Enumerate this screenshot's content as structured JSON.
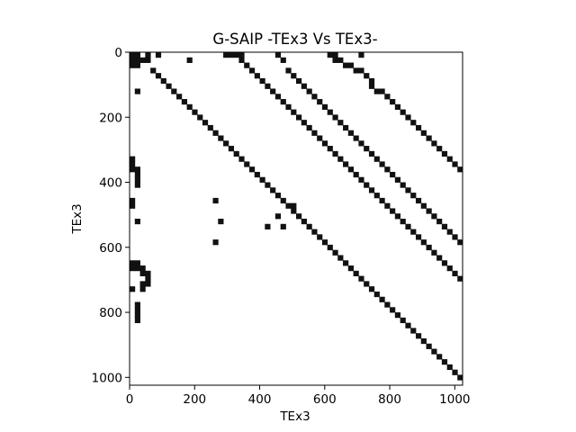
{
  "chart_data": {
    "type": "heatmap",
    "title": "G-SAIP -TEx3 Vs TEx3-",
    "xlabel": "TEx3",
    "ylabel": "TEx3",
    "matrix_size": 1024,
    "cell_size": 16,
    "xlim": [
      0,
      1024
    ],
    "ylim": [
      1024,
      0
    ],
    "y_inverted": true,
    "xticks": [
      0,
      200,
      400,
      600,
      800,
      1000
    ],
    "yticks": [
      0,
      200,
      400,
      600,
      800,
      1000
    ],
    "grid": false,
    "colormap": "binary",
    "mark_color": "#111111",
    "background_color": "#ffffff",
    "nonzero_cells": [
      [
        0,
        0
      ],
      [
        0,
        1
      ],
      [
        1,
        0
      ],
      [
        1,
        1
      ],
      [
        1,
        2
      ],
      [
        0,
        3
      ],
      [
        1,
        3
      ],
      [
        2,
        0
      ],
      [
        2,
        1
      ],
      [
        0,
        5
      ],
      [
        3,
        4
      ],
      [
        4,
        5
      ],
      [
        5,
        6
      ],
      [
        6,
        7
      ],
      [
        7,
        8
      ],
      [
        8,
        9
      ],
      [
        9,
        10
      ],
      [
        10,
        11
      ],
      [
        11,
        12
      ],
      [
        12,
        13
      ],
      [
        13,
        14
      ],
      [
        14,
        15
      ],
      [
        15,
        16
      ],
      [
        16,
        17
      ],
      [
        17,
        18
      ],
      [
        18,
        19
      ],
      [
        19,
        20
      ],
      [
        20,
        21
      ],
      [
        21,
        22
      ],
      [
        22,
        23
      ],
      [
        23,
        24
      ],
      [
        24,
        25
      ],
      [
        25,
        26
      ],
      [
        26,
        27
      ],
      [
        27,
        28
      ],
      [
        28,
        29
      ],
      [
        29,
        30
      ],
      [
        30,
        31
      ],
      [
        31,
        32
      ],
      [
        32,
        33
      ],
      [
        33,
        34
      ],
      [
        34,
        35
      ],
      [
        35,
        36
      ],
      [
        36,
        37
      ],
      [
        37,
        38
      ],
      [
        38,
        39
      ],
      [
        39,
        40
      ],
      [
        40,
        41
      ],
      [
        41,
        42
      ],
      [
        42,
        43
      ],
      [
        43,
        44
      ],
      [
        44,
        45
      ],
      [
        45,
        46
      ],
      [
        46,
        47
      ],
      [
        47,
        48
      ],
      [
        48,
        49
      ],
      [
        49,
        50
      ],
      [
        50,
        51
      ],
      [
        51,
        52
      ],
      [
        52,
        53
      ],
      [
        53,
        54
      ],
      [
        54,
        55
      ],
      [
        55,
        56
      ],
      [
        56,
        57
      ],
      [
        57,
        58
      ],
      [
        58,
        59
      ],
      [
        59,
        60
      ],
      [
        60,
        61
      ],
      [
        61,
        62
      ],
      [
        62,
        63
      ],
      [
        0,
        18
      ],
      [
        0,
        19
      ],
      [
        0,
        20
      ],
      [
        0,
        21
      ],
      [
        1,
        21
      ],
      [
        2,
        22
      ],
      [
        3,
        23
      ],
      [
        4,
        24
      ],
      [
        5,
        25
      ],
      [
        6,
        26
      ],
      [
        7,
        27
      ],
      [
        8,
        28
      ],
      [
        9,
        29
      ],
      [
        10,
        30
      ],
      [
        11,
        31
      ],
      [
        12,
        32
      ],
      [
        13,
        33
      ],
      [
        14,
        34
      ],
      [
        15,
        35
      ],
      [
        16,
        36
      ],
      [
        17,
        37
      ],
      [
        18,
        38
      ],
      [
        19,
        39
      ],
      [
        20,
        40
      ],
      [
        21,
        41
      ],
      [
        22,
        42
      ],
      [
        23,
        43
      ],
      [
        24,
        44
      ],
      [
        25,
        45
      ],
      [
        26,
        46
      ],
      [
        27,
        47
      ],
      [
        28,
        48
      ],
      [
        29,
        49
      ],
      [
        30,
        50
      ],
      [
        31,
        51
      ],
      [
        32,
        52
      ],
      [
        33,
        53
      ],
      [
        34,
        54
      ],
      [
        35,
        55
      ],
      [
        36,
        56
      ],
      [
        37,
        57
      ],
      [
        38,
        58
      ],
      [
        39,
        59
      ],
      [
        40,
        60
      ],
      [
        41,
        61
      ],
      [
        42,
        62
      ],
      [
        43,
        63
      ],
      [
        0,
        28
      ],
      [
        1,
        29
      ],
      [
        3,
        30
      ],
      [
        4,
        31
      ],
      [
        5,
        32
      ],
      [
        6,
        33
      ],
      [
        7,
        34
      ],
      [
        8,
        35
      ],
      [
        9,
        36
      ],
      [
        10,
        37
      ],
      [
        11,
        38
      ],
      [
        12,
        39
      ],
      [
        13,
        40
      ],
      [
        14,
        41
      ],
      [
        15,
        42
      ],
      [
        16,
        43
      ],
      [
        17,
        44
      ],
      [
        18,
        45
      ],
      [
        19,
        46
      ],
      [
        20,
        47
      ],
      [
        21,
        48
      ],
      [
        22,
        49
      ],
      [
        23,
        50
      ],
      [
        24,
        51
      ],
      [
        25,
        52
      ],
      [
        26,
        53
      ],
      [
        27,
        54
      ],
      [
        28,
        55
      ],
      [
        29,
        56
      ],
      [
        30,
        57
      ],
      [
        31,
        58
      ],
      [
        32,
        59
      ],
      [
        33,
        60
      ],
      [
        34,
        61
      ],
      [
        35,
        62
      ],
      [
        36,
        63
      ],
      [
        0,
        38
      ],
      [
        0,
        39
      ],
      [
        1,
        39
      ],
      [
        1,
        40
      ],
      [
        2,
        41
      ],
      [
        2,
        42
      ],
      [
        3,
        43
      ],
      [
        3,
        44
      ],
      [
        4,
        45
      ],
      [
        5,
        46
      ],
      [
        6,
        46
      ],
      [
        7,
        47
      ],
      [
        7,
        48
      ],
      [
        8,
        49
      ],
      [
        9,
        50
      ],
      [
        10,
        51
      ],
      [
        11,
        52
      ],
      [
        12,
        53
      ],
      [
        13,
        54
      ],
      [
        14,
        55
      ],
      [
        15,
        56
      ],
      [
        16,
        57
      ],
      [
        17,
        58
      ],
      [
        18,
        59
      ],
      [
        19,
        60
      ],
      [
        20,
        61
      ],
      [
        21,
        62
      ],
      [
        22,
        63
      ],
      [
        1,
        11
      ],
      [
        7,
        1
      ],
      [
        25,
        1
      ],
      [
        28,
        16
      ],
      [
        32,
        1
      ],
      [
        32,
        17
      ],
      [
        31,
        28
      ],
      [
        29,
        31
      ],
      [
        44,
        2
      ],
      [
        45,
        2
      ],
      [
        33,
        26
      ],
      [
        33,
        29
      ],
      [
        36,
        16
      ],
      [
        0,
        44
      ],
      [
        20,
        0
      ],
      [
        21,
        0
      ],
      [
        22,
        0
      ],
      [
        22,
        1
      ],
      [
        23,
        1
      ],
      [
        24,
        1
      ],
      [
        28,
        0
      ],
      [
        29,
        0
      ],
      [
        40,
        0
      ],
      [
        40,
        1
      ],
      [
        41,
        0
      ],
      [
        41,
        1
      ],
      [
        41,
        2
      ],
      [
        42,
        2
      ],
      [
        42,
        3
      ],
      [
        43,
        3
      ],
      [
        44,
        3
      ],
      [
        45,
        0
      ],
      [
        48,
        1
      ],
      [
        49,
        1
      ],
      [
        50,
        1
      ],
      [
        51,
        1
      ]
    ]
  }
}
